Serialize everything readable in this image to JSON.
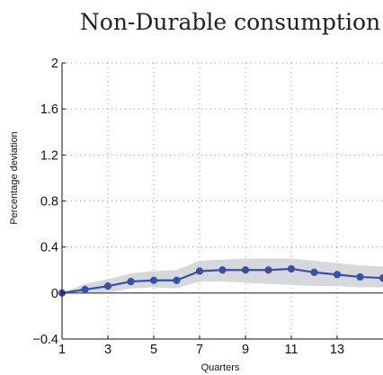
{
  "chart_data": {
    "type": "line",
    "title": "Non-Durable consumption",
    "xlabel": "Quarters",
    "ylabel": "Percentage deviation",
    "xlim": [
      1,
      15
    ],
    "ylim": [
      -0.4,
      2
    ],
    "xticks": [
      1,
      3,
      5,
      7,
      9,
      11,
      13
    ],
    "xtick_labels": [
      "1",
      "3",
      "5",
      "7",
      "9",
      "11",
      "13"
    ],
    "yticks": [
      -0.4,
      0,
      0.4,
      0.8,
      1.2,
      1.6,
      2
    ],
    "ytick_labels": [
      "−0.4",
      "0",
      "0.4",
      "0.8",
      "1.2",
      "1.6",
      "2"
    ],
    "grid": true,
    "series": [
      {
        "x": [
          1,
          2,
          3,
          4,
          5,
          6,
          7,
          8,
          9,
          10,
          11,
          12,
          13,
          14,
          15
        ],
        "values": [
          0.0,
          0.03,
          0.06,
          0.1,
          0.11,
          0.11,
          0.19,
          0.2,
          0.2,
          0.2,
          0.21,
          0.18,
          0.16,
          0.14,
          0.13
        ],
        "lower": [
          0.0,
          0.0,
          0.0,
          0.04,
          0.05,
          0.04,
          0.1,
          0.1,
          0.09,
          0.08,
          0.07,
          0.06,
          0.06,
          0.05,
          0.05
        ],
        "upper": [
          0.0,
          0.08,
          0.12,
          0.17,
          0.19,
          0.2,
          0.28,
          0.29,
          0.3,
          0.3,
          0.3,
          0.28,
          0.26,
          0.24,
          0.23
        ],
        "color": "#3950a8"
      }
    ],
    "band_color": "#d7d8db",
    "zero_line_color": "#555555"
  }
}
